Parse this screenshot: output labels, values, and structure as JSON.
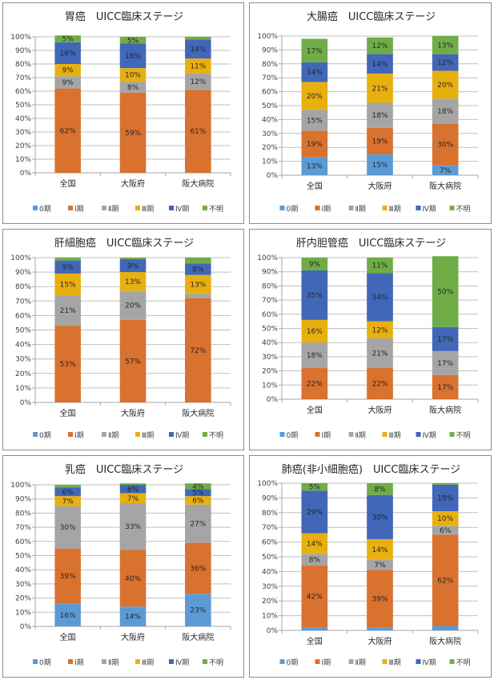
{
  "legend": [
    "0期",
    "Ⅰ期",
    "Ⅱ期",
    "Ⅲ期",
    "Ⅳ期",
    "不明"
  ],
  "colors": [
    "#5b9bd5",
    "#d9712f",
    "#a5a5a5",
    "#e8b00f",
    "#4267b8",
    "#70ad47"
  ],
  "chart_data": [
    {
      "type": "bar",
      "stacked": true,
      "title": "胃癌　UICC臨床ステージ",
      "categories": [
        "全国",
        "大阪府",
        "阪大病院"
      ],
      "yticks": [
        "0%",
        "10%",
        "20%",
        "30%",
        "40%",
        "50%",
        "60%",
        "70%",
        "80%",
        "90%",
        "100%"
      ],
      "ylim": [
        0,
        100
      ],
      "legend_position": "bottom",
      "series": [
        {
          "name": "0期",
          "values": [
            0,
            0,
            0
          ],
          "labels": [
            "",
            "",
            ""
          ]
        },
        {
          "name": "Ⅰ期",
          "values": [
            62,
            59,
            61
          ],
          "labels": [
            "62%",
            "59%",
            "61%"
          ]
        },
        {
          "name": "Ⅱ期",
          "values": [
            9,
            8,
            12
          ],
          "labels": [
            "9%",
            "8%",
            "12%"
          ]
        },
        {
          "name": "Ⅲ期",
          "values": [
            9,
            10,
            11
          ],
          "labels": [
            "9%",
            "10%",
            "11%"
          ]
        },
        {
          "name": "Ⅳ期",
          "values": [
            16,
            18,
            14
          ],
          "labels": [
            "16%",
            "18%",
            "14%"
          ]
        },
        {
          "name": "不明",
          "values": [
            5,
            5,
            2
          ],
          "labels": [
            "5%",
            "5%",
            ""
          ]
        }
      ]
    },
    {
      "type": "bar",
      "stacked": true,
      "title": "大腸癌　UICC臨床ステージ",
      "categories": [
        "全国",
        "大阪府",
        "阪大病院"
      ],
      "yticks": [
        "0%",
        "10%",
        "20%",
        "30%",
        "40%",
        "50%",
        "60%",
        "70%",
        "80%",
        "90%",
        "100%"
      ],
      "ylim": [
        0,
        100
      ],
      "legend_position": "bottom",
      "series": [
        {
          "name": "0期",
          "values": [
            13,
            15,
            7
          ],
          "labels": [
            "13%",
            "15%",
            "7%"
          ]
        },
        {
          "name": "Ⅰ期",
          "values": [
            19,
            19,
            30
          ],
          "labels": [
            "19%",
            "19%",
            "30%"
          ]
        },
        {
          "name": "Ⅱ期",
          "values": [
            15,
            18,
            18
          ],
          "labels": [
            "15%",
            "18%",
            "18%"
          ]
        },
        {
          "name": "Ⅲ期",
          "values": [
            20,
            21,
            20
          ],
          "labels": [
            "20%",
            "21%",
            "20%"
          ]
        },
        {
          "name": "Ⅳ期",
          "values": [
            14,
            14,
            12
          ],
          "labels": [
            "14%",
            "14%",
            "12%"
          ]
        },
        {
          "name": "不明",
          "values": [
            17,
            12,
            13
          ],
          "labels": [
            "17%",
            "12%",
            "13%"
          ]
        }
      ]
    },
    {
      "type": "bar",
      "stacked": true,
      "title": "肝細胞癌　UICC臨床ステージ",
      "categories": [
        "全国",
        "大阪府",
        "阪大病院"
      ],
      "yticks": [
        "0%",
        "10%",
        "20%",
        "30%",
        "40%",
        "50%",
        "60%",
        "70%",
        "80%",
        "90%",
        "100%"
      ],
      "ylim": [
        0,
        100
      ],
      "legend_position": "bottom",
      "series": [
        {
          "name": "0期",
          "values": [
            0,
            0,
            0
          ],
          "labels": [
            "",
            "",
            ""
          ]
        },
        {
          "name": "Ⅰ期",
          "values": [
            53,
            57,
            72
          ],
          "labels": [
            "53%",
            "57%",
            "72%"
          ]
        },
        {
          "name": "Ⅱ期",
          "values": [
            21,
            20,
            3
          ],
          "labels": [
            "21%",
            "20%",
            ""
          ]
        },
        {
          "name": "Ⅲ期",
          "values": [
            15,
            13,
            13
          ],
          "labels": [
            "15%",
            "13%",
            "13%"
          ]
        },
        {
          "name": "Ⅳ期",
          "values": [
            9,
            9,
            8
          ],
          "labels": [
            "9%",
            "9%",
            "8%"
          ]
        },
        {
          "name": "不明",
          "values": [
            2,
            1,
            4
          ],
          "labels": [
            "",
            "",
            ""
          ]
        }
      ]
    },
    {
      "type": "bar",
      "stacked": true,
      "title": "肝内胆管癌　UICC臨床ステージ",
      "categories": [
        "全国",
        "大阪府",
        "阪大病院"
      ],
      "yticks": [
        "0%",
        "10%",
        "20%",
        "30%",
        "40%",
        "50%",
        "60%",
        "70%",
        "80%",
        "90%",
        "100%"
      ],
      "ylim": [
        0,
        100
      ],
      "legend_position": "bottom",
      "series": [
        {
          "name": "0期",
          "values": [
            0,
            0,
            0
          ],
          "labels": [
            "",
            "",
            ""
          ]
        },
        {
          "name": "Ⅰ期",
          "values": [
            22,
            22,
            17
          ],
          "labels": [
            "22%",
            "22%",
            "17%"
          ]
        },
        {
          "name": "Ⅱ期",
          "values": [
            18,
            21,
            17
          ],
          "labels": [
            "18%",
            "21%",
            "17%"
          ]
        },
        {
          "name": "Ⅲ期",
          "values": [
            16,
            12,
            0
          ],
          "labels": [
            "16%",
            "12%",
            ""
          ]
        },
        {
          "name": "Ⅳ期",
          "values": [
            35,
            34,
            17
          ],
          "labels": [
            "35%",
            "34%",
            "17%"
          ]
        },
        {
          "name": "不明",
          "values": [
            9,
            11,
            50
          ],
          "labels": [
            "9%",
            "11%",
            "50%"
          ]
        }
      ]
    },
    {
      "type": "bar",
      "stacked": true,
      "title": "乳癌　UICC臨床ステージ",
      "categories": [
        "全国",
        "大阪府",
        "阪大病院"
      ],
      "yticks": [
        "0%",
        "10%",
        "20%",
        "30%",
        "40%",
        "50%",
        "60%",
        "70%",
        "80%",
        "90%",
        "100%"
      ],
      "ylim": [
        0,
        100
      ],
      "legend_position": "bottom",
      "series": [
        {
          "name": "0期",
          "values": [
            16,
            14,
            23
          ],
          "labels": [
            "16%",
            "14%",
            "23%"
          ]
        },
        {
          "name": "Ⅰ期",
          "values": [
            39,
            40,
            36
          ],
          "labels": [
            "39%",
            "40%",
            "36%"
          ]
        },
        {
          "name": "Ⅱ期",
          "values": [
            30,
            33,
            27
          ],
          "labels": [
            "30%",
            "33%",
            "27%"
          ]
        },
        {
          "name": "Ⅲ期",
          "values": [
            7,
            7,
            6
          ],
          "labels": [
            "7%",
            "7%",
            "6%"
          ]
        },
        {
          "name": "Ⅳ期",
          "values": [
            6,
            6,
            5
          ],
          "labels": [
            "6%",
            "6%",
            "5%"
          ]
        },
        {
          "name": "不明",
          "values": [
            2,
            1,
            4
          ],
          "labels": [
            "",
            "",
            "4%"
          ]
        }
      ]
    },
    {
      "type": "bar",
      "stacked": true,
      "title": "肺癌(非小細胞癌)　UICC臨床ステージ",
      "categories": [
        "全国",
        "大阪府",
        "阪大病院"
      ],
      "yticks": [
        "0%",
        "10%",
        "20%",
        "30%",
        "40%",
        "50%",
        "60%",
        "70%",
        "80%",
        "90%",
        "100%"
      ],
      "ylim": [
        0,
        100
      ],
      "legend_position": "bottom",
      "series": [
        {
          "name": "0期",
          "values": [
            2,
            2,
            3
          ],
          "labels": [
            "",
            "",
            ""
          ]
        },
        {
          "name": "Ⅰ期",
          "values": [
            42,
            39,
            62
          ],
          "labels": [
            "42%",
            "39%",
            "62%"
          ]
        },
        {
          "name": "Ⅱ期",
          "values": [
            8,
            7,
            6
          ],
          "labels": [
            "8%",
            "7%",
            "6%"
          ]
        },
        {
          "name": "Ⅲ期",
          "values": [
            14,
            14,
            10
          ],
          "labels": [
            "14%",
            "14%",
            "10%"
          ]
        },
        {
          "name": "Ⅳ期",
          "values": [
            29,
            30,
            18
          ],
          "labels": [
            "29%",
            "30%",
            "18%"
          ]
        },
        {
          "name": "不明",
          "values": [
            5,
            8,
            1
          ],
          "labels": [
            "5%",
            "8%",
            ""
          ]
        }
      ]
    }
  ]
}
